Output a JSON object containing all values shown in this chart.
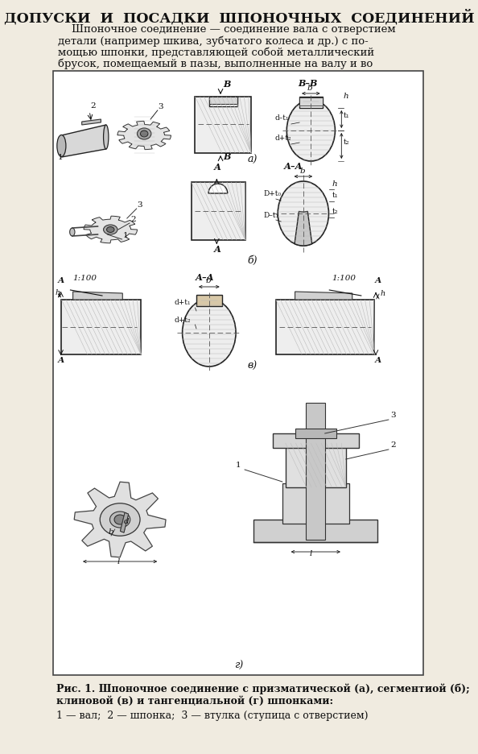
{
  "title": "ДОПУСКИ  И  ПОСАДКИ  ШПОНОЧНЫХ  СОЕДИНЕНИЙ",
  "bg_color": "#f0ebe0",
  "text_color": "#111111",
  "para_lines": [
    "    Шпоночное соединение — соединение вала с отверстием",
    "детали (например шкива, зубчатого колеса и др.) с по-",
    "мощью шпонки, представляющей собой металлический",
    "брусок, помещаемый в пазы, выполненные на валу и во"
  ],
  "label_a": "а)",
  "label_b": "б)",
  "label_v": "в)",
  "label_g": "г)",
  "caption_line1": "Рис. 1. Шпоночное соединение с призматической (а), сегментиой (б);",
  "caption_line2": "клиновой (в) и тангенциальной (г) шпонками:",
  "caption_line3": "1 — вал;  2 — шпонка;  3 — втулка (ступица с отверстием)"
}
